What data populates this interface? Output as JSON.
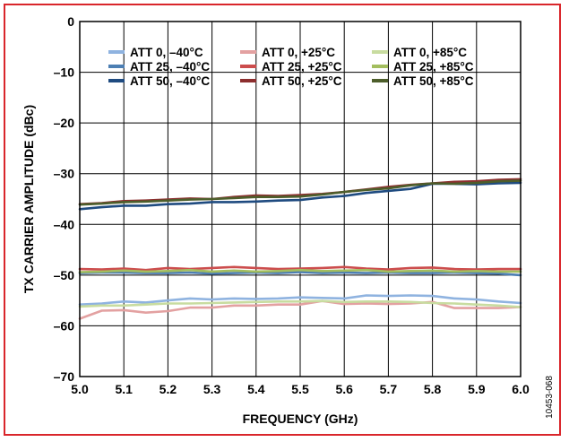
{
  "figure_id": "10453-068",
  "chart_data": {
    "type": "line",
    "title": "",
    "xlabel": "FREQUENCY (GHz)",
    "ylabel": "TX CARRIER AMPLITUDE (dBc)",
    "xlim": [
      5.0,
      6.0
    ],
    "ylim": [
      -70,
      0
    ],
    "xticks": [
      "5.0",
      "5.1",
      "5.2",
      "5.3",
      "5.4",
      "5.5",
      "5.6",
      "5.7",
      "5.8",
      "5.9",
      "6.0"
    ],
    "yticks": [
      "0",
      "–10",
      "–20",
      "–30",
      "–40",
      "–50",
      "–60",
      "–70"
    ],
    "grid": true,
    "legend_position": "top",
    "x": [
      5.0,
      5.05,
      5.1,
      5.15,
      5.2,
      5.25,
      5.3,
      5.35,
      5.4,
      5.45,
      5.5,
      5.55,
      5.6,
      5.65,
      5.7,
      5.75,
      5.8,
      5.85,
      5.9,
      5.95,
      6.0
    ],
    "series": [
      {
        "name": "ATT 0, –40°C",
        "color": "#8fb3e0",
        "values": [
          -55.8,
          -55.6,
          -55.2,
          -55.4,
          -55.0,
          -54.6,
          -54.8,
          -54.6,
          -54.7,
          -54.6,
          -54.4,
          -54.5,
          -54.6,
          -54.0,
          -54.1,
          -54.0,
          -54.1,
          -54.6,
          -54.8,
          -55.2,
          -55.5
        ]
      },
      {
        "name": "ATT 25, –40°C",
        "color": "#4d7fb3",
        "values": [
          -49.6,
          -49.5,
          -49.5,
          -49.6,
          -49.6,
          -49.5,
          -49.7,
          -49.6,
          -49.5,
          -49.6,
          -49.4,
          -49.6,
          -49.5,
          -49.6,
          -49.5,
          -49.6,
          -49.6,
          -49.5,
          -49.6,
          -49.7,
          -50.0
        ]
      },
      {
        "name": "ATT 50, –40°C",
        "color": "#1f4b80",
        "values": [
          -37.0,
          -36.6,
          -36.3,
          -36.3,
          -36.0,
          -35.9,
          -35.6,
          -35.6,
          -35.5,
          -35.3,
          -35.2,
          -34.7,
          -34.4,
          -33.8,
          -33.4,
          -33.0,
          -32.0,
          -32.0,
          -32.1,
          -31.9,
          -31.8
        ]
      },
      {
        "name": "ATT 0, +25°C",
        "color": "#e3a1a1",
        "values": [
          -58.6,
          -57.0,
          -56.9,
          -57.4,
          -57.1,
          -56.4,
          -56.4,
          -56.0,
          -56.0,
          -55.8,
          -55.8,
          -55.1,
          -55.7,
          -55.6,
          -55.7,
          -55.6,
          -55.3,
          -56.5,
          -56.5,
          -56.5,
          -56.3
        ]
      },
      {
        "name": "ATT 25, +25°C",
        "color": "#cc4d4d",
        "values": [
          -48.8,
          -48.9,
          -48.7,
          -49.0,
          -48.6,
          -48.8,
          -48.6,
          -48.4,
          -48.6,
          -48.8,
          -48.7,
          -48.6,
          -48.4,
          -48.7,
          -48.9,
          -48.6,
          -48.5,
          -48.8,
          -48.9,
          -48.8,
          -48.8
        ]
      },
      {
        "name": "ATT 50, +25°C",
        "color": "#8c2e2e",
        "values": [
          -36.0,
          -35.8,
          -35.4,
          -35.3,
          -35.1,
          -34.9,
          -35.0,
          -34.6,
          -34.3,
          -34.4,
          -34.2,
          -34.0,
          -33.6,
          -33.1,
          -32.6,
          -32.2,
          -31.9,
          -31.6,
          -31.5,
          -31.2,
          -31.1
        ]
      },
      {
        "name": "ATT 0, +85°C",
        "color": "#c8dca0",
        "values": [
          -56.2,
          -56.0,
          -56.0,
          -55.8,
          -55.6,
          -55.6,
          -55.5,
          -55.4,
          -55.3,
          -55.2,
          -55.2,
          -55.1,
          -55.3,
          -55.2,
          -55.2,
          -55.3,
          -55.5,
          -55.6,
          -55.8,
          -56.0,
          -56.3
        ]
      },
      {
        "name": "ATT 25, +85°C",
        "color": "#a3be5e",
        "values": [
          -49.4,
          -49.3,
          -49.1,
          -49.3,
          -49.2,
          -49.0,
          -49.3,
          -49.1,
          -49.3,
          -49.2,
          -49.0,
          -49.2,
          -49.1,
          -49.0,
          -49.3,
          -49.2,
          -49.1,
          -49.3,
          -49.2,
          -49.3,
          -49.3
        ]
      },
      {
        "name": "ATT 50, +85°C",
        "color": "#4d5e2b",
        "values": [
          -36.1,
          -35.9,
          -35.6,
          -35.5,
          -35.3,
          -35.1,
          -35.0,
          -34.8,
          -34.6,
          -34.6,
          -34.5,
          -34.1,
          -33.6,
          -33.2,
          -32.9,
          -32.3,
          -31.9,
          -32.0,
          -31.8,
          -31.5,
          -31.4
        ]
      }
    ]
  }
}
